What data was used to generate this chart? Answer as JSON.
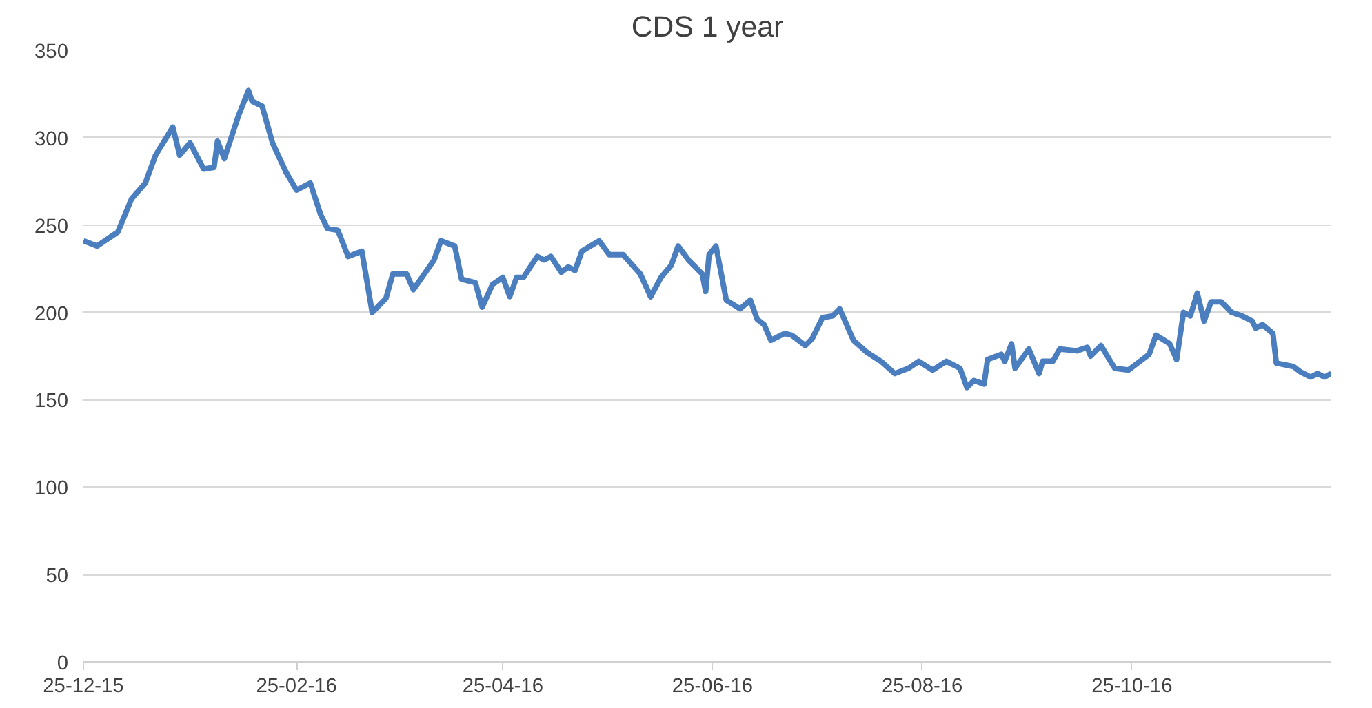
{
  "chart_data": {
    "type": "line",
    "title": "CDS 1 year",
    "x": [
      "2015-12-25",
      "2015-12-29",
      "2016-01-04",
      "2016-01-08",
      "2016-01-12",
      "2016-01-15",
      "2016-01-20",
      "2016-01-22",
      "2016-01-25",
      "2016-01-29",
      "2016-02-01",
      "2016-02-02",
      "2016-02-04",
      "2016-02-08",
      "2016-02-11",
      "2016-02-12",
      "2016-02-15",
      "2016-02-18",
      "2016-02-22",
      "2016-02-25",
      "2016-02-29",
      "2016-03-03",
      "2016-03-05",
      "2016-03-08",
      "2016-03-11",
      "2016-03-15",
      "2016-03-18",
      "2016-03-22",
      "2016-03-24",
      "2016-03-28",
      "2016-03-30",
      "2016-04-05",
      "2016-04-07",
      "2016-04-11",
      "2016-04-13",
      "2016-04-17",
      "2016-04-19",
      "2016-04-22",
      "2016-04-25",
      "2016-04-27",
      "2016-04-29",
      "2016-05-01",
      "2016-05-05",
      "2016-05-07",
      "2016-05-09",
      "2016-05-12",
      "2016-05-14",
      "2016-05-16",
      "2016-05-18",
      "2016-05-23",
      "2016-05-26",
      "2016-05-30",
      "2016-06-04",
      "2016-06-07",
      "2016-06-10",
      "2016-06-13",
      "2016-06-15",
      "2016-06-18",
      "2016-06-22",
      "2016-06-23",
      "2016-06-24",
      "2016-06-26",
      "2016-06-29",
      "2016-07-03",
      "2016-07-06",
      "2016-07-08",
      "2016-07-10",
      "2016-07-12",
      "2016-07-16",
      "2016-07-18",
      "2016-07-22",
      "2016-07-24",
      "2016-07-27",
      "2016-07-30",
      "2016-08-01",
      "2016-08-05",
      "2016-08-09",
      "2016-08-13",
      "2016-08-17",
      "2016-08-21",
      "2016-08-24",
      "2016-08-28",
      "2016-09-01",
      "2016-09-05",
      "2016-09-07",
      "2016-09-09",
      "2016-09-12",
      "2016-09-13",
      "2016-09-17",
      "2016-09-18",
      "2016-09-20",
      "2016-09-21",
      "2016-09-25",
      "2016-09-28",
      "2016-09-29",
      "2016-10-02",
      "2016-10-04",
      "2016-10-09",
      "2016-10-12",
      "2016-10-13",
      "2016-10-16",
      "2016-10-20",
      "2016-10-24",
      "2016-10-28",
      "2016-10-30",
      "2016-11-01",
      "2016-11-05",
      "2016-11-07",
      "2016-11-09",
      "2016-11-11",
      "2016-11-13",
      "2016-11-15",
      "2016-11-17",
      "2016-11-20",
      "2016-11-23",
      "2016-11-26",
      "2016-11-29",
      "2016-11-30",
      "2016-12-02",
      "2016-12-05",
      "2016-12-06",
      "2016-12-11",
      "2016-12-13",
      "2016-12-16",
      "2016-12-18",
      "2016-12-20",
      "2016-12-22"
    ],
    "series": [
      {
        "color": "#4a7ebf",
        "values": [
          241,
          238,
          246,
          265,
          274,
          290,
          306,
          290,
          297,
          282,
          283,
          298,
          288,
          312,
          327,
          321,
          318,
          297,
          280,
          270,
          274,
          256,
          248,
          247,
          232,
          235,
          200,
          208,
          222,
          222,
          213,
          230,
          241,
          238,
          219,
          217,
          203,
          216,
          220,
          209,
          220,
          220,
          232,
          230,
          232,
          223,
          226,
          224,
          235,
          241,
          233,
          233,
          222,
          209,
          220,
          227,
          238,
          230,
          222,
          212,
          233,
          238,
          207,
          202,
          207,
          196,
          193,
          184,
          188,
          187,
          181,
          185,
          197,
          198,
          202,
          184,
          177,
          172,
          165,
          168,
          172,
          167,
          172,
          168,
          157,
          161,
          159,
          173,
          176,
          172,
          182,
          168,
          179,
          165,
          172,
          172,
          179,
          178,
          180,
          175,
          181,
          168,
          167,
          173,
          176,
          187,
          182,
          173,
          200,
          198,
          211,
          195,
          206,
          206,
          200,
          198,
          195,
          191,
          193,
          188,
          171,
          169,
          166,
          163,
          165,
          163,
          165
        ]
      }
    ],
    "xlim": [
      "2015-12-25",
      "2016-12-22"
    ],
    "xticks": [
      {
        "value": "2015-12-25",
        "label": "25-12-15"
      },
      {
        "value": "2016-02-25",
        "label": "25-02-16"
      },
      {
        "value": "2016-04-25",
        "label": "25-04-16"
      },
      {
        "value": "2016-06-25",
        "label": "25-06-16"
      },
      {
        "value": "2016-08-25",
        "label": "25-08-16"
      },
      {
        "value": "2016-10-25",
        "label": "25-10-16"
      }
    ],
    "ylim": [
      0,
      350
    ],
    "yticks": [
      0,
      50,
      100,
      150,
      200,
      250,
      300,
      350
    ],
    "grid": "y",
    "marker": "none",
    "line_style": "solid"
  }
}
